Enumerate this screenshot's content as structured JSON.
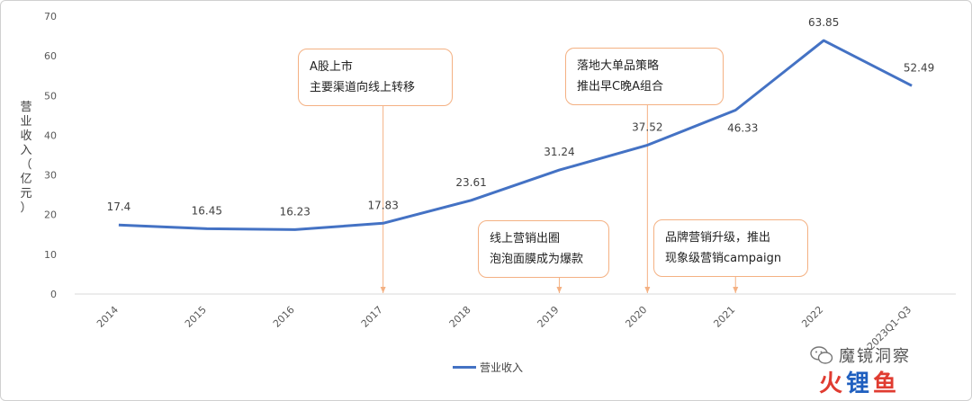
{
  "chart_data": {
    "type": "line",
    "categories": [
      "2014",
      "2015",
      "2016",
      "2017",
      "2018",
      "2019",
      "2020",
      "2021",
      "2022",
      "2023Q1-Q3"
    ],
    "series": [
      {
        "name": "营业收入",
        "values": [
          17.4,
          16.45,
          16.23,
          17.83,
          23.61,
          31.24,
          37.52,
          46.33,
          63.85,
          52.49
        ],
        "color": "#4472c4"
      }
    ],
    "data_labels": [
      "17.4",
      "16.45",
      "16.23",
      "17.83",
      "23.61",
      "31.24",
      "37.52",
      "46.33",
      "63.85",
      "52.49"
    ],
    "ylabel": "营业收入（亿元）",
    "ylim": [
      0,
      70
    ],
    "yticks": [
      "0",
      "10",
      "20",
      "30",
      "40",
      "50",
      "60",
      "70"
    ],
    "grid": false,
    "legend": "bottom",
    "annotations": [
      {
        "lines": [
          "A股上市",
          "主要渠道向线上转移"
        ],
        "category": "2017"
      },
      {
        "lines": [
          "线上营销出圈",
          "泡泡面膜成为爆款"
        ],
        "category": "2019"
      },
      {
        "lines": [
          "落地大单品策略",
          "推出早C晚A组合"
        ],
        "category": "2020"
      },
      {
        "lines": [
          "品牌营销升级，推出",
          "现象级营销campaign"
        ],
        "category": "2021"
      }
    ]
  },
  "watermark": {
    "text": "魔镜洞察",
    "logo": "火锂鱼",
    "colors": {
      "logo_red": "#e03c31",
      "logo_blue": "#1f5fbf"
    }
  }
}
